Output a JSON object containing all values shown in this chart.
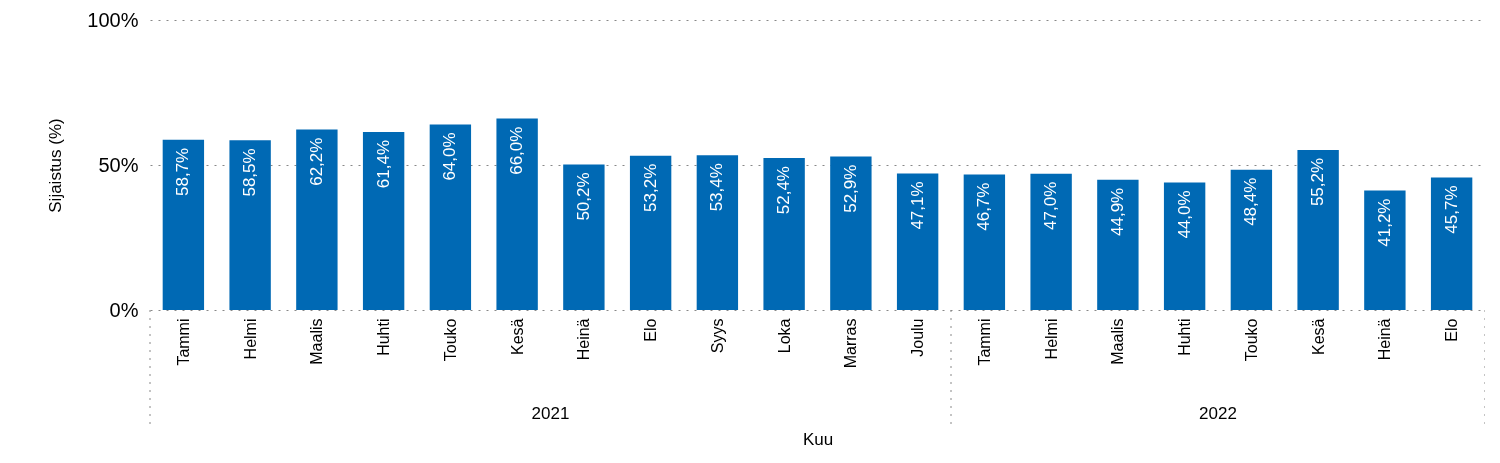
{
  "chart_data": {
    "type": "bar",
    "categories": [
      "Tammi",
      "Helmi",
      "Maalis",
      "Huhti",
      "Touko",
      "Kesä",
      "Heinä",
      "Elo",
      "Syys",
      "Loka",
      "Marras",
      "Joulu",
      "Tammi",
      "Helmi",
      "Maalis",
      "Huhti",
      "Touko",
      "Kesä",
      "Heinä",
      "Elo"
    ],
    "values": [
      58.7,
      58.5,
      62.2,
      61.4,
      64.0,
      66.0,
      50.2,
      53.2,
      53.4,
      52.4,
      52.9,
      47.1,
      46.7,
      47.0,
      44.9,
      44.0,
      48.4,
      55.2,
      41.2,
      45.7
    ],
    "value_labels": [
      "58,7%",
      "58,5%",
      "62,2%",
      "61,4%",
      "64,0%",
      "66,0%",
      "50,2%",
      "53,2%",
      "53,4%",
      "52,4%",
      "52,9%",
      "47,1%",
      "46,7%",
      "47,0%",
      "44,9%",
      "44,0%",
      "48,4%",
      "55,2%",
      "41,2%",
      "45,7%"
    ],
    "color": "#0069b4",
    "xlabel": "Kuu",
    "ylabel": "Sijaistus (%)",
    "ylim": [
      0,
      100
    ],
    "yticks": [
      {
        "value": 0,
        "label": "0%"
      },
      {
        "value": 50,
        "label": "50%"
      },
      {
        "value": 100,
        "label": "100%"
      }
    ],
    "grid": "y",
    "annotations": [
      "2021",
      "2022"
    ]
  }
}
